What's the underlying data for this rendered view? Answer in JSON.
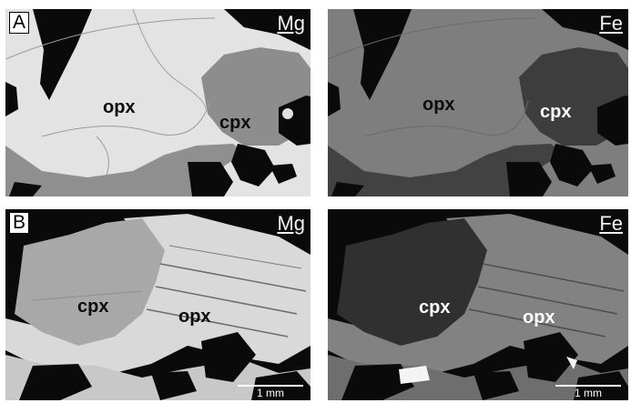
{
  "panels": {
    "a_mg": {
      "tag": "A",
      "element": "Mg",
      "labels": {
        "opx": "opx",
        "cpx": "cpx"
      }
    },
    "a_fe": {
      "element": "Fe",
      "labels": {
        "opx": "opx",
        "cpx": "cpx"
      }
    },
    "b_mg": {
      "tag": "B",
      "element": "Mg",
      "labels": {
        "cpx": "cpx",
        "opx": "opx"
      },
      "scale": "1 mm"
    },
    "b_fe": {
      "element": "Fe",
      "labels": {
        "cpx": "cpx",
        "opx": "opx"
      },
      "scale": "1 mm"
    }
  },
  "colors": {
    "background": "#ffffff",
    "void": "#0a0a0a"
  }
}
